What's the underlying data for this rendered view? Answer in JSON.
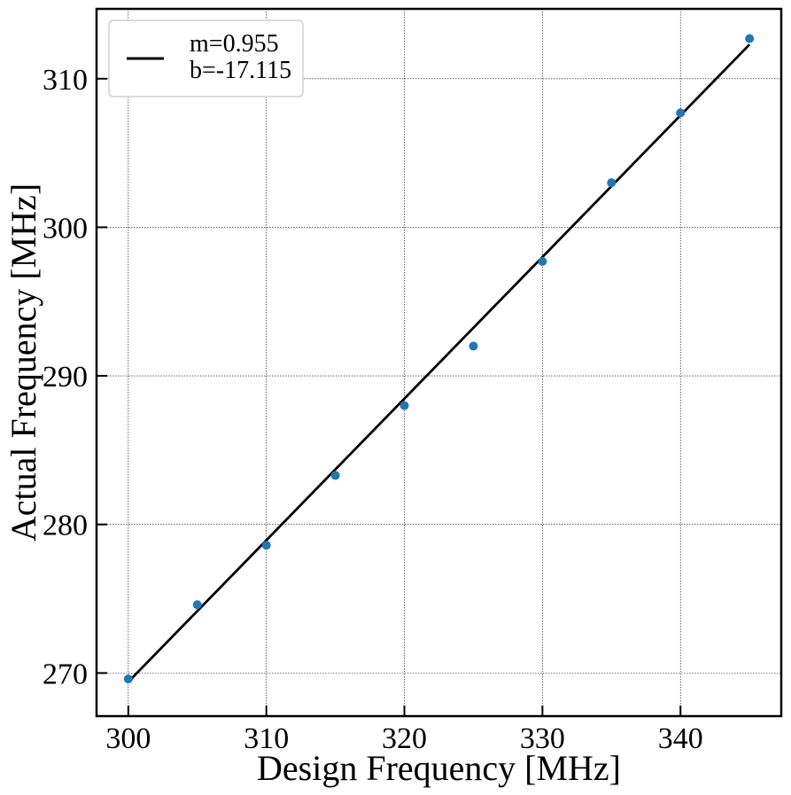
{
  "chart_data": {
    "type": "scatter",
    "title": "",
    "xlabel": "Design Frequency [MHz]",
    "ylabel": "Actual Frequency [MHz]",
    "xlim": [
      297.7,
      347.3
    ],
    "ylim": [
      267.1,
      314.7
    ],
    "xticks": [
      300,
      310,
      320,
      330,
      340
    ],
    "yticks": [
      270,
      280,
      290,
      300,
      310
    ],
    "grid": true,
    "legend_position": "top-left",
    "series": [
      {
        "name": "",
        "kind": "scatter",
        "color": "#1f77b4",
        "x": [
          300,
          305,
          310,
          315,
          320,
          325,
          330,
          335,
          340,
          345
        ],
        "y": [
          269.6,
          274.6,
          278.6,
          283.3,
          288.0,
          292.0,
          297.7,
          303.0,
          307.7,
          312.7
        ]
      },
      {
        "name": "m=0.955\nb=-17.115",
        "name_lines": [
          "m=0.955",
          "b=-17.115"
        ],
        "kind": "line",
        "color": "#000000",
        "x": [
          300,
          345
        ],
        "y": [
          269.4,
          312.3
        ]
      }
    ]
  }
}
